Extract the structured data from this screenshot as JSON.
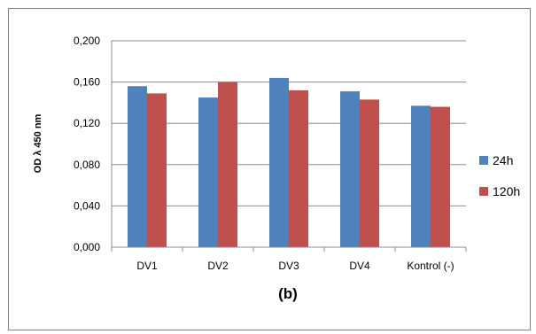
{
  "chart_data": {
    "type": "bar",
    "title": "",
    "xlabel": "(b)",
    "ylabel": "OD λ 450 nm",
    "categories": [
      "DV1",
      "DV2",
      "DV3",
      "DV4",
      "Kontrol (-)"
    ],
    "series": [
      {
        "name": "24h",
        "color": "#4f81bd",
        "values": [
          0.156,
          0.145,
          0.164,
          0.151,
          0.137
        ]
      },
      {
        "name": "120h",
        "color": "#c0504d",
        "values": [
          0.149,
          0.16,
          0.152,
          0.143,
          0.136
        ]
      }
    ],
    "ylim": [
      0,
      0.2
    ],
    "yticks": [
      "0,000",
      "0,040",
      "0,080",
      "0,120",
      "0,160",
      "0,200"
    ],
    "grid": true,
    "legend": "right"
  }
}
